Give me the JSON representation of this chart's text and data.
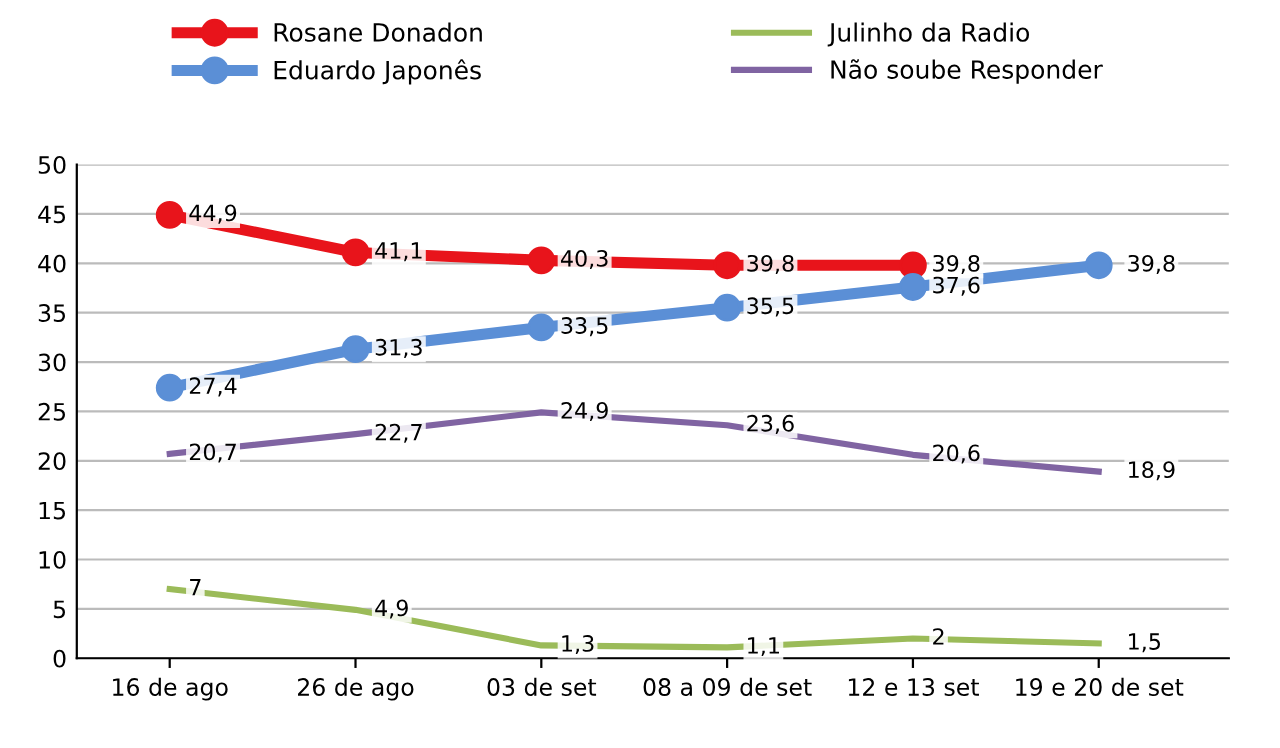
{
  "chart_data": {
    "type": "line",
    "categories": [
      "16 de ago",
      "26 de ago",
      "03 de set",
      "08 a 09 de set",
      "12 e 13 set",
      "19 e 20 de set"
    ],
    "series": [
      {
        "name": "Rosane Donadon",
        "color": "#e8141b",
        "marker": "circle",
        "values": [
          44.9,
          41.1,
          40.3,
          39.8,
          39.8,
          null
        ],
        "value_labels": [
          "44,9",
          "41,1",
          "40,3",
          "39,8",
          "39,8",
          null
        ]
      },
      {
        "name": "Eduardo Japonês",
        "color": "#5b8fd6",
        "marker": "circle",
        "values": [
          27.4,
          31.3,
          33.5,
          35.5,
          37.6,
          39.8
        ],
        "value_labels": [
          "27,4",
          "31,3",
          "33,5",
          "35,5",
          "37,6",
          "39,8"
        ]
      },
      {
        "name": "Julinho da Radio",
        "color": "#9bbb59",
        "marker": "none",
        "values": [
          7,
          4.9,
          1.3,
          1.1,
          2,
          1.5
        ],
        "value_labels": [
          "7",
          "4,9",
          "1,3",
          "1,1",
          "2",
          "1,5"
        ]
      },
      {
        "name": "Não soube Responder",
        "color": "#8064a2",
        "marker": "none",
        "values": [
          20.7,
          22.7,
          24.9,
          23.6,
          20.6,
          18.9
        ],
        "value_labels": [
          "20,7",
          "22,7",
          "24,9",
          "23,6",
          "20,6",
          "18,9"
        ]
      }
    ],
    "ylim": [
      0,
      50
    ],
    "yticks": [
      0,
      5,
      10,
      15,
      20,
      25,
      30,
      35,
      40,
      45,
      50
    ],
    "grid": "y",
    "legend": "top"
  }
}
